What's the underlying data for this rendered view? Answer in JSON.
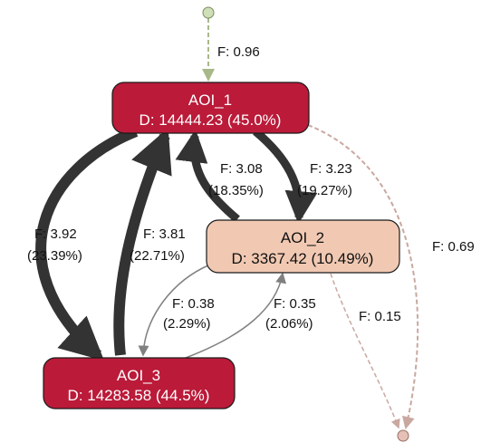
{
  "diagram": {
    "nodes": {
      "start": {
        "kind": "start-marker"
      },
      "end": {
        "kind": "end-marker"
      },
      "aoi_1": {
        "name": "AOI_1",
        "duration": "D: 14444.23 (45.0%)"
      },
      "aoi_2": {
        "name": "AOI_2",
        "duration": "D: 3367.42 (10.49%)"
      },
      "aoi_3": {
        "name": "AOI_3",
        "duration": "D: 14283.58 (44.5%)"
      }
    },
    "edges": {
      "start_to_aoi1": {
        "from": "start",
        "to": "AOI_1",
        "freq": "F: 0.96"
      },
      "aoi1_to_aoi2": {
        "from": "AOI_1",
        "to": "AOI_2",
        "freq": "F: 3.23",
        "pct": "(19.27%)"
      },
      "aoi2_to_aoi1": {
        "from": "AOI_2",
        "to": "AOI_1",
        "freq": "F: 3.08",
        "pct": "(18.35%)"
      },
      "aoi1_to_aoi3": {
        "from": "AOI_1",
        "to": "AOI_3",
        "freq": "F: 3.92",
        "pct": "(23.39%)"
      },
      "aoi3_to_aoi1": {
        "from": "AOI_3",
        "to": "AOI_1",
        "freq": "F: 3.81",
        "pct": "(22.71%)"
      },
      "aoi2_to_aoi3": {
        "from": "AOI_2",
        "to": "AOI_3",
        "freq": "F: 0.38",
        "pct": "(2.29%)"
      },
      "aoi3_to_aoi2": {
        "from": "AOI_3",
        "to": "AOI_2",
        "freq": "F: 0.35",
        "pct": "(2.06%)"
      },
      "aoi2_to_end": {
        "from": "AOI_2",
        "to": "end",
        "freq": "F: 0.15"
      },
      "aoi1_to_end": {
        "from": "AOI_1",
        "to": "end",
        "freq": "F: 0.69"
      }
    },
    "colors": {
      "aoi_1_fill": "#bb1a39",
      "aoi_3_fill": "#bb1a39",
      "aoi_2_fill": "#f1c9b3",
      "heavy_edge": "#333333",
      "light_edge": "#808080",
      "start_marker": "#cfe0b9",
      "start_edge": "#a8b888",
      "end_marker": "#e4c0b6",
      "end_edge": "#c9a8a0"
    }
  }
}
